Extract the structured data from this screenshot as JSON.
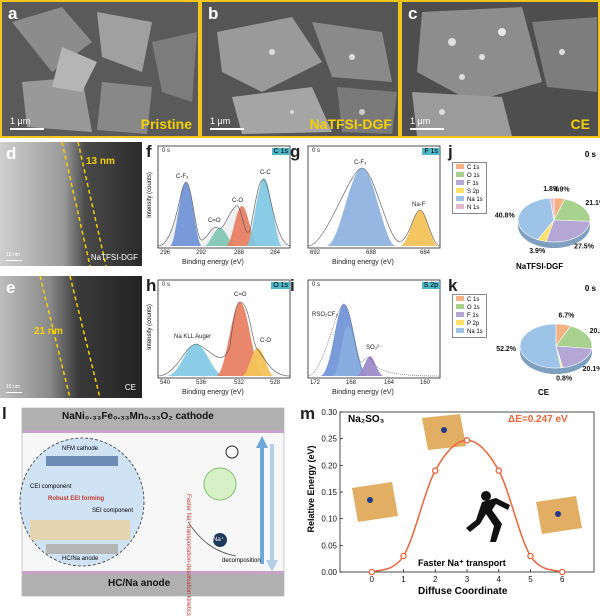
{
  "sem": [
    {
      "letter": "a",
      "title": "Pristine",
      "scale": "1 μm"
    },
    {
      "letter": "b",
      "title": "NaTFSI-DGF",
      "scale": "1 μm"
    },
    {
      "letter": "c",
      "title": "CE",
      "scale": "1 μm"
    }
  ],
  "tem": [
    {
      "letter": "d",
      "thickness": "13 nm",
      "sample": "NaTFSI-DGF",
      "scale": "10 nm"
    },
    {
      "letter": "e",
      "thickness": "21 nm",
      "sample": "CE",
      "scale": "10 nm"
    }
  ],
  "xps": {
    "time": "0 s",
    "ylabel": "Intensity (counts)",
    "xlabel": "Binding energy (eV)",
    "f": {
      "letter": "f",
      "tag": "C 1s",
      "ticks": [
        "296",
        "292",
        "288",
        "284"
      ],
      "peaks": [
        "C-F₃",
        "C=O",
        "C-O",
        "C-C"
      ]
    },
    "g": {
      "letter": "g",
      "tag": "F 1s",
      "ticks": [
        "692",
        "688",
        "684"
      ],
      "peaks": [
        "C-F₃",
        "Na-F"
      ]
    },
    "h": {
      "letter": "h",
      "tag": "O 1s",
      "ticks": [
        "540",
        "536",
        "532",
        "528"
      ],
      "peaks": [
        "Na KLL Auger",
        "C=O",
        "C-O"
      ]
    },
    "i": {
      "letter": "i",
      "tag": "S 2p",
      "ticks": [
        "172",
        "168",
        "164",
        "160"
      ],
      "peaks": [
        "RSO₂CF₃",
        "SO₃²⁻"
      ]
    }
  },
  "chart_data": [
    {
      "type": "pie",
      "panel": "j",
      "time": "0 s",
      "caption": "NaTFSI-DGF",
      "legend": [
        "C 1s",
        "O 1s",
        "F 1s",
        "S 2p",
        "Na 1s",
        "N 1s"
      ],
      "values": [
        4.9,
        21.1,
        27.5,
        3.9,
        40.8,
        1.8
      ],
      "labels": [
        "4.9%",
        "21.1%",
        "27.5%",
        "3.9%",
        "40.8%",
        "1.8%"
      ],
      "colors": [
        "#f4b183",
        "#a9d18e",
        "#b4a7d6",
        "#ffe066",
        "#9dc3e6",
        "#e6b8d1"
      ]
    },
    {
      "type": "pie",
      "panel": "k",
      "time": "0 s",
      "caption": "CE",
      "legend": [
        "C 1s",
        "O 1s",
        "F 1s",
        "P 2p",
        "Na 1s"
      ],
      "values": [
        6.7,
        20.2,
        20.1,
        0.8,
        52.2
      ],
      "labels": [
        "6.7%",
        "20.2%",
        "20.1%",
        "0.8%",
        "52.2%"
      ],
      "colors": [
        "#f4b183",
        "#a9d18e",
        "#b4a7d6",
        "#ffe066",
        "#9dc3e6"
      ]
    },
    {
      "type": "line",
      "panel": "m",
      "title": "Na₂SO₃",
      "annotation": "ΔE=0.247 eV",
      "note": "Faster Na⁺ transport",
      "xlabel": "Diffuse Coordinate",
      "ylabel": "Relative Energy (eV)",
      "x": [
        0,
        1,
        2,
        3,
        4,
        5,
        6
      ],
      "y": [
        0.0,
        0.03,
        0.19,
        0.247,
        0.19,
        0.03,
        0.0
      ],
      "xlim": [
        -1,
        7
      ],
      "ylim": [
        0,
        0.3
      ],
      "xticks": [
        "0",
        "1",
        "2",
        "3",
        "4",
        "5",
        "6"
      ],
      "yticks": [
        "0.00",
        "0.05",
        "0.10",
        "0.15",
        "0.20",
        "0.25",
        "0.30"
      ],
      "color": "#e8643c"
    }
  ],
  "schematic": {
    "letter": "l",
    "cathode": "NaNi₀.₃₃Fe₀.₃₃Mn₀.₃₃O₂ cathode",
    "anode": "HC/Na anode",
    "inset_cathode": "NFM cathode",
    "inset_cei": "CEI component",
    "inset_eei": "Robust EEI forming",
    "inset_sei": "SEI component",
    "inset_anode": "HC/Na anode",
    "kinetics": "Faster Na⁺ transportation-desolvation kinetics",
    "decomp": "decomposition",
    "ion": "Na⁺"
  }
}
